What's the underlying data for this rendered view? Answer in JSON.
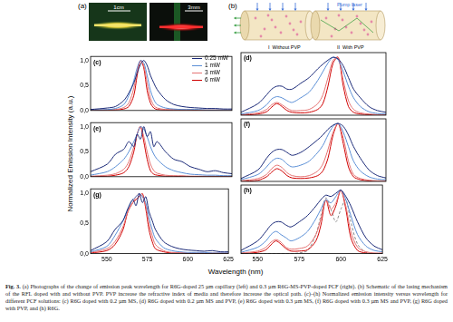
{
  "panel_a": {
    "label": "(a)",
    "scale_bars": [
      "1cm",
      "3mm"
    ]
  },
  "panel_b": {
    "label": "(b)",
    "pump": "Pump laser",
    "left": {
      "numeral": "I",
      "text": "Without PVP"
    },
    "right": {
      "numeral": "II",
      "text": "With PVP"
    }
  },
  "y_label": "Normalized Emission Intensity (a.u.)",
  "x_label": "Wavelength (nm)",
  "caption": {
    "label": "Fig. 3.",
    "text": "(a) Photographs of the change of emission peak wavelength for R6G-doped 25 µm capillary (left) and 0.3 µm R6G-MS-PVP-doped PCF (right). (b) Schematic of the lasing mechanism of the RFL doped with and without PVP. PVP increase the refractive index of media and therefore increase the optical path. (c)–(h) Normalized emission intensity versus wavelength for different PCF solutions: (c) R6G doped with 0.2 µm MS, (d) R6G doped with 0.2 µm MS and PVP, (e) R6G doped with 0.3 µm MS, (f) R6G doped with 0.3 µm MS and PVP, (g) R6G doped with PVP, and (h) R6G."
  },
  "chart_data": [
    {
      "type": "line",
      "title": "(c)",
      "legend": "top-right",
      "grid": false,
      "tick_labels": "y",
      "x": [
        540,
        550,
        555,
        560,
        563,
        566,
        568,
        570,
        572,
        574,
        576,
        578,
        580,
        585,
        590,
        595,
        600,
        605,
        610,
        615,
        620,
        625
      ],
      "xlim": [
        540,
        625
      ],
      "xticks": [
        550,
        575,
        600,
        625
      ],
      "ylim": [
        0,
        1.08
      ],
      "yticks": [
        {
          "value": 0,
          "label": "0,0"
        },
        {
          "value": 0.5,
          "label": "0,5"
        },
        {
          "value": 1.0,
          "label": "1,0"
        }
      ],
      "series": [
        {
          "name": "0.25 mW",
          "color": "#1b2a78",
          "values": [
            0.02,
            0.05,
            0.08,
            0.2,
            0.35,
            0.55,
            0.75,
            0.92,
            1.0,
            0.9,
            0.7,
            0.55,
            0.42,
            0.22,
            0.12,
            0.08,
            0.06,
            0.05,
            0.04,
            0.04,
            0.03,
            0.03
          ]
        },
        {
          "name": "1 mW",
          "color": "#5b8fd6",
          "values": [
            0.01,
            0.02,
            0.04,
            0.12,
            0.3,
            0.6,
            0.85,
            1.0,
            0.95,
            0.7,
            0.4,
            0.22,
            0.12,
            0.05,
            0.03,
            0.02,
            0.02,
            0.02,
            0.01,
            0.01,
            0.01,
            0.01
          ]
        },
        {
          "name": "3 mW",
          "color": "#e57373",
          "values": [
            0.01,
            0.01,
            0.02,
            0.06,
            0.15,
            0.45,
            0.8,
            1.0,
            0.9,
            0.55,
            0.25,
            0.1,
            0.05,
            0.02,
            0.02,
            0.01,
            0.01,
            0.01,
            0.01,
            0.01,
            0.01,
            0.01
          ]
        },
        {
          "name": "6 mW",
          "color": "#d00000",
          "values": [
            0,
            0.01,
            0.01,
            0.03,
            0.08,
            0.3,
            0.7,
            1.0,
            0.85,
            0.4,
            0.15,
            0.05,
            0.02,
            0.01,
            0.01,
            0.01,
            0.01,
            0,
            0,
            0,
            0,
            0
          ]
        }
      ]
    },
    {
      "type": "line",
      "title": "(d)",
      "grid": false,
      "tick_labels": false,
      "x": [
        540,
        550,
        555,
        558,
        561,
        564,
        567,
        570,
        575,
        580,
        585,
        588,
        591,
        594,
        597,
        600,
        603,
        606,
        610,
        615,
        620,
        625
      ],
      "xlim": [
        540,
        625
      ],
      "xticks": [
        550,
        575,
        600,
        625
      ],
      "ylim": [
        0,
        1.08
      ],
      "yticks": [
        {
          "value": 0,
          "label": "0,0"
        },
        {
          "value": 0.5,
          "label": "0,5"
        },
        {
          "value": 1.0,
          "label": "1,0"
        }
      ],
      "series": [
        {
          "name": "0.25 mW",
          "color": "#1b2a78",
          "values": [
            0.05,
            0.2,
            0.35,
            0.45,
            0.5,
            0.5,
            0.45,
            0.45,
            0.55,
            0.65,
            0.8,
            0.88,
            0.95,
            1.0,
            0.97,
            0.85,
            0.65,
            0.45,
            0.3,
            0.15,
            0.08,
            0.05
          ]
        },
        {
          "name": "1 mW",
          "color": "#5b8fd6",
          "values": [
            0.02,
            0.08,
            0.18,
            0.28,
            0.32,
            0.3,
            0.25,
            0.22,
            0.3,
            0.4,
            0.6,
            0.75,
            0.9,
            1.0,
            0.95,
            0.75,
            0.5,
            0.3,
            0.15,
            0.06,
            0.03,
            0.02
          ]
        },
        {
          "name": "3 mW",
          "color": "#e57373",
          "values": [
            0.01,
            0.04,
            0.1,
            0.18,
            0.22,
            0.18,
            0.12,
            0.08,
            0.08,
            0.1,
            0.2,
            0.35,
            0.65,
            0.95,
            1.0,
            0.6,
            0.25,
            0.1,
            0.04,
            0.02,
            0.01,
            0.01
          ]
        },
        {
          "name": "6 mW",
          "color": "#d00000",
          "values": [
            0,
            0.02,
            0.06,
            0.14,
            0.2,
            0.15,
            0.08,
            0.05,
            0.04,
            0.05,
            0.1,
            0.2,
            0.5,
            0.9,
            1.0,
            0.5,
            0.15,
            0.05,
            0.02,
            0.01,
            0,
            0
          ]
        }
      ]
    },
    {
      "type": "line",
      "title": "(e)",
      "grid": false,
      "tick_labels": "y",
      "x": [
        540,
        550,
        555,
        560,
        563,
        566,
        568,
        570,
        572,
        574,
        576,
        578,
        580,
        585,
        590,
        595,
        600,
        605,
        610,
        615,
        620,
        625
      ],
      "xlim": [
        540,
        625
      ],
      "xticks": [
        550,
        575,
        600,
        625
      ],
      "ylim": [
        0,
        1.08
      ],
      "yticks": [
        {
          "value": 0,
          "label": "0,0"
        },
        {
          "value": 0.5,
          "label": "0,5"
        },
        {
          "value": 1.0,
          "label": "1,0"
        }
      ],
      "series": [
        {
          "name": "0.25 mW",
          "color": "#1b2a78",
          "values": [
            0.1,
            0.25,
            0.45,
            0.55,
            0.7,
            0.6,
            0.85,
            0.75,
            1.0,
            0.8,
            0.9,
            0.6,
            0.7,
            0.5,
            0.35,
            0.3,
            0.2,
            0.15,
            0.1,
            0.12,
            0.08,
            0.06
          ]
        },
        {
          "name": "1 mW",
          "color": "#5b8fd6",
          "values": [
            0.03,
            0.1,
            0.2,
            0.35,
            0.5,
            0.7,
            0.85,
            1.0,
            0.95,
            0.8,
            0.6,
            0.45,
            0.35,
            0.2,
            0.12,
            0.08,
            0.05,
            0.04,
            0.03,
            0.03,
            0.02,
            0.02
          ]
        },
        {
          "name": "3 mW",
          "color": "#e57373",
          "values": [
            0.01,
            0.03,
            0.06,
            0.15,
            0.3,
            0.6,
            0.85,
            1.0,
            0.8,
            0.5,
            0.25,
            0.12,
            0.07,
            0.03,
            0.02,
            0.02,
            0.01,
            0.01,
            0.01,
            0.01,
            0.01,
            0.01
          ]
        },
        {
          "name": "6 mW",
          "color": "#d00000",
          "values": [
            0,
            0.01,
            0.03,
            0.08,
            0.2,
            0.5,
            0.85,
            1.0,
            0.7,
            0.35,
            0.12,
            0.05,
            0.03,
            0.01,
            0.01,
            0,
            0,
            0,
            0,
            0,
            0,
            0
          ]
        }
      ]
    },
    {
      "type": "line",
      "title": "(f)",
      "grid": false,
      "tick_labels": false,
      "x": [
        540,
        550,
        555,
        558,
        561,
        564,
        567,
        570,
        575,
        580,
        585,
        588,
        591,
        594,
        597,
        600,
        603,
        606,
        610,
        615,
        620,
        625
      ],
      "xlim": [
        540,
        625
      ],
      "xticks": [
        550,
        575,
        600,
        625
      ],
      "ylim": [
        0,
        1.08
      ],
      "yticks": [
        {
          "value": 0,
          "label": "0,0"
        },
        {
          "value": 0.5,
          "label": "0,5"
        },
        {
          "value": 1.0,
          "label": "1,0"
        }
      ],
      "series": [
        {
          "name": "0.25 mW",
          "color": "#1b2a78",
          "values": [
            0.05,
            0.2,
            0.4,
            0.5,
            0.55,
            0.55,
            0.5,
            0.45,
            0.5,
            0.6,
            0.72,
            0.8,
            0.9,
            0.97,
            1.0,
            0.95,
            0.8,
            0.6,
            0.4,
            0.2,
            0.1,
            0.06
          ]
        },
        {
          "name": "1 mW",
          "color": "#5b8fd6",
          "values": [
            0.03,
            0.12,
            0.25,
            0.35,
            0.4,
            0.38,
            0.3,
            0.25,
            0.28,
            0.35,
            0.5,
            0.62,
            0.8,
            0.95,
            1.0,
            0.85,
            0.6,
            0.35,
            0.18,
            0.08,
            0.04,
            0.03
          ]
        },
        {
          "name": "3 mW",
          "color": "#e57373",
          "values": [
            0.01,
            0.05,
            0.12,
            0.22,
            0.28,
            0.24,
            0.15,
            0.1,
            0.08,
            0.1,
            0.18,
            0.3,
            0.55,
            0.85,
            1.0,
            0.75,
            0.35,
            0.12,
            0.05,
            0.02,
            0.01,
            0.01
          ]
        },
        {
          "name": "6 mW",
          "color": "#d00000",
          "values": [
            0,
            0.02,
            0.08,
            0.16,
            0.22,
            0.18,
            0.1,
            0.06,
            0.05,
            0.06,
            0.1,
            0.18,
            0.4,
            0.8,
            1.0,
            0.65,
            0.25,
            0.08,
            0.03,
            0.01,
            0,
            0
          ]
        }
      ]
    },
    {
      "type": "line",
      "title": "(g)",
      "grid": false,
      "tick_labels": true,
      "x": [
        540,
        550,
        555,
        560,
        563,
        566,
        568,
        570,
        572,
        574,
        576,
        578,
        580,
        585,
        590,
        595,
        600,
        605,
        610,
        615,
        620,
        625
      ],
      "xlim": [
        540,
        625
      ],
      "xticks": [
        550,
        575,
        600,
        625
      ],
      "ylim": [
        0,
        1.08
      ],
      "yticks": [
        {
          "value": 0,
          "label": "0,0"
        },
        {
          "value": 0.5,
          "label": "0,5"
        },
        {
          "value": 1.0,
          "label": "1,0"
        }
      ],
      "series": [
        {
          "name": "0.25 mW",
          "color": "#1b2a78",
          "values": [
            0.05,
            0.2,
            0.4,
            0.55,
            0.75,
            0.9,
            0.8,
            1.0,
            0.85,
            0.95,
            0.7,
            0.55,
            0.4,
            0.2,
            0.12,
            0.08,
            0.06,
            0.05,
            0.04,
            0.05,
            0.03,
            0.03
          ]
        },
        {
          "name": "1 mW",
          "color": "#5b8fd6",
          "values": [
            0.03,
            0.12,
            0.3,
            0.55,
            0.75,
            0.9,
            0.95,
            1.0,
            0.95,
            0.85,
            0.6,
            0.4,
            0.25,
            0.1,
            0.05,
            0.03,
            0.02,
            0.02,
            0.02,
            0.01,
            0.01,
            0.01
          ]
        },
        {
          "name": "3 mW",
          "color": "#e57373",
          "values": [
            0.02,
            0.08,
            0.2,
            0.45,
            0.7,
            0.85,
            0.95,
            1.0,
            0.95,
            0.8,
            0.5,
            0.3,
            0.15,
            0.05,
            0.02,
            0.02,
            0.01,
            0.01,
            0.01,
            0.01,
            0.01,
            0.01
          ]
        },
        {
          "name": "6 mW",
          "color": "#d00000",
          "values": [
            0.01,
            0.05,
            0.15,
            0.4,
            0.7,
            0.85,
            0.9,
            0.95,
            1.0,
            0.75,
            0.4,
            0.2,
            0.08,
            0.03,
            0.01,
            0.01,
            0,
            0,
            0,
            0,
            0,
            0
          ]
        }
      ]
    },
    {
      "type": "line",
      "title": "(h)",
      "grid": false,
      "tick_labels": "x",
      "x": [
        540,
        550,
        555,
        558,
        561,
        564,
        567,
        570,
        575,
        580,
        585,
        588,
        591,
        594,
        597,
        600,
        603,
        606,
        610,
        615,
        620,
        625
      ],
      "xlim": [
        540,
        625
      ],
      "xticks": [
        550,
        575,
        600,
        625
      ],
      "ylim": [
        0,
        1.08
      ],
      "yticks": [
        {
          "value": 0,
          "label": "0,0"
        },
        {
          "value": 0.5,
          "label": "0,5"
        },
        {
          "value": 1.0,
          "label": "1,0"
        }
      ],
      "series": [
        {
          "name": "0.25 mW",
          "color": "#1b2a78",
          "values": [
            0.05,
            0.2,
            0.35,
            0.45,
            0.5,
            0.5,
            0.45,
            0.42,
            0.5,
            0.6,
            0.75,
            0.85,
            0.92,
            0.9,
            0.95,
            1.0,
            0.9,
            0.75,
            0.5,
            0.25,
            0.12,
            0.06
          ]
        },
        {
          "name": "1 mW",
          "color": "#5b8fd6",
          "values": [
            0.02,
            0.1,
            0.2,
            0.3,
            0.35,
            0.3,
            0.25,
            0.2,
            0.25,
            0.35,
            0.55,
            0.7,
            0.85,
            0.8,
            0.9,
            1.0,
            0.85,
            0.6,
            0.3,
            0.12,
            0.05,
            0.03
          ]
        },
        {
          "name": "3 mW",
          "color": "#e57373",
          "values": [
            0.01,
            0.04,
            0.1,
            0.18,
            0.22,
            0.18,
            0.1,
            0.07,
            0.08,
            0.12,
            0.3,
            0.55,
            0.85,
            0.7,
            0.8,
            1.0,
            0.75,
            0.35,
            0.1,
            0.03,
            0.01,
            0.01
          ]
        },
        {
          "name": "6 mW",
          "color": "#d00000",
          "values": [
            0,
            0.02,
            0.06,
            0.14,
            0.2,
            0.15,
            0.08,
            0.04,
            0.04,
            0.06,
            0.2,
            0.45,
            0.85,
            0.6,
            0.75,
            1.0,
            0.7,
            0.25,
            0.05,
            0.01,
            0,
            0
          ]
        },
        {
          "color": "#8a8a8a",
          "line_style": "dashed",
          "values": [
            0,
            0,
            0,
            0,
            0,
            0,
            0,
            0,
            0.01,
            0.05,
            0.3,
            0.6,
            0.88,
            0.7,
            0.5,
            0.7,
            0.85,
            0.5,
            0.15,
            0.02,
            0,
            0
          ]
        }
      ]
    }
  ]
}
